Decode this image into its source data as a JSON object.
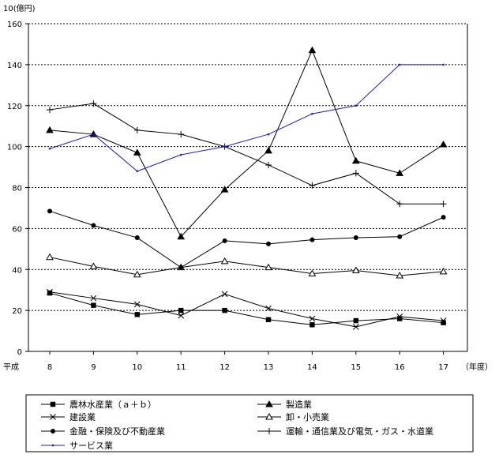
{
  "chart_data": {
    "type": "line",
    "title": "",
    "y_unit_label": "10(億円)",
    "x_prefix_label": "平成",
    "x_suffix_label": "（年度）",
    "x": [
      "8",
      "9",
      "10",
      "11",
      "12",
      "13",
      "14",
      "15",
      "16",
      "17"
    ],
    "ylim": [
      0,
      160
    ],
    "yticks": [
      "0",
      "20",
      "40",
      "60",
      "80",
      "100",
      "120",
      "140",
      "160"
    ],
    "grid": true,
    "legend_position": "bottom",
    "series": [
      {
        "name": "農林水産業（ａ＋ｂ）",
        "marker": "square",
        "color": "#000000",
        "values": [
          28.5,
          22.5,
          18,
          20,
          20,
          15.5,
          13,
          15,
          16,
          14
        ]
      },
      {
        "name": "製造業",
        "marker": "triangle",
        "color": "#000000",
        "values": [
          108,
          106,
          97,
          56,
          79,
          98,
          147,
          93,
          87,
          101
        ]
      },
      {
        "name": "建設業",
        "marker": "x",
        "color": "#000000",
        "values": [
          29,
          26,
          23,
          17.5,
          28,
          21,
          16,
          12,
          17,
          15
        ]
      },
      {
        "name": "卸・小売業",
        "marker": "triangle-open",
        "color": "#000000",
        "values": [
          46,
          41.5,
          37.5,
          41,
          44,
          41,
          38,
          39.5,
          37,
          39
        ]
      },
      {
        "name": "金融・保険及び不動産業",
        "marker": "circle",
        "color": "#000000",
        "values": [
          68.5,
          61.5,
          55.5,
          41,
          54,
          52.5,
          54.5,
          55.5,
          56,
          65.5
        ]
      },
      {
        "name": "運輸・通信業及び電気・ガス・水道業",
        "marker": "plus",
        "color": "#000000",
        "values": [
          118,
          121,
          108,
          106,
          100,
          91,
          81,
          87,
          72,
          72
        ]
      },
      {
        "name": "サービス業",
        "marker": "dot",
        "color": "#1a1ad0",
        "values": [
          99,
          106,
          88,
          96,
          100,
          106,
          116,
          120,
          140,
          140
        ]
      }
    ]
  }
}
